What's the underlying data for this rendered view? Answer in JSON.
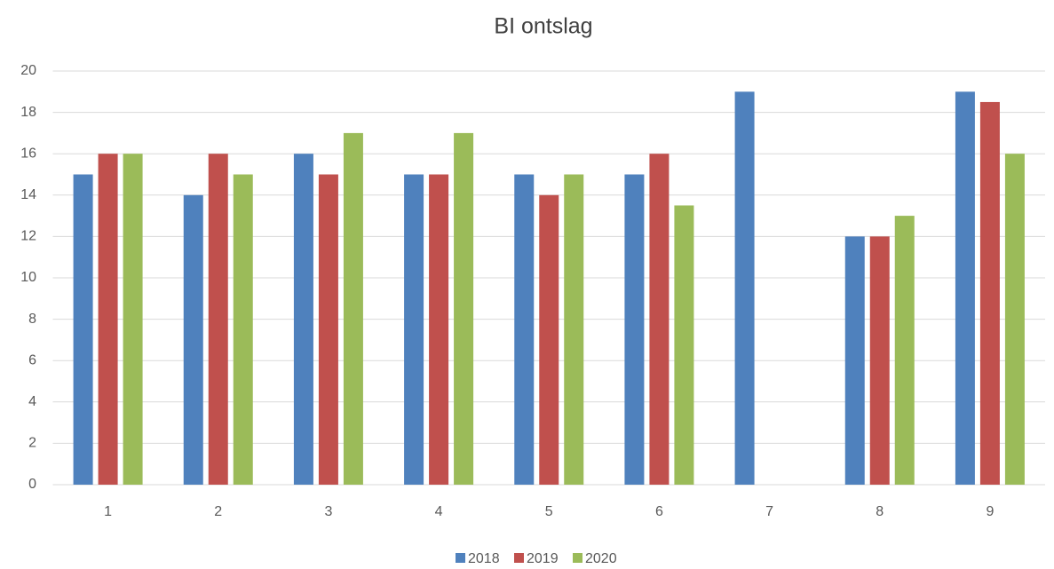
{
  "chart_data": {
    "type": "bar",
    "title": "BI ontslag",
    "categories": [
      "1",
      "2",
      "3",
      "4",
      "5",
      "6",
      "7",
      "8",
      "9"
    ],
    "series": [
      {
        "name": "2018",
        "color": "#4f81bd",
        "values": [
          15,
          14,
          16,
          15,
          15,
          15,
          19,
          12,
          19
        ]
      },
      {
        "name": "2019",
        "color": "#c0504d",
        "values": [
          16,
          16,
          15,
          15,
          14,
          16,
          null,
          12,
          18.5
        ]
      },
      {
        "name": "2020",
        "color": "#9bbb59",
        "values": [
          16,
          15,
          17,
          17,
          15,
          13.5,
          null,
          13,
          16
        ]
      }
    ],
    "ylim": [
      0,
      20
    ],
    "yticks": [
      0,
      2,
      4,
      6,
      8,
      10,
      12,
      14,
      16,
      18,
      20
    ],
    "grid": true,
    "legend": "bottom"
  }
}
